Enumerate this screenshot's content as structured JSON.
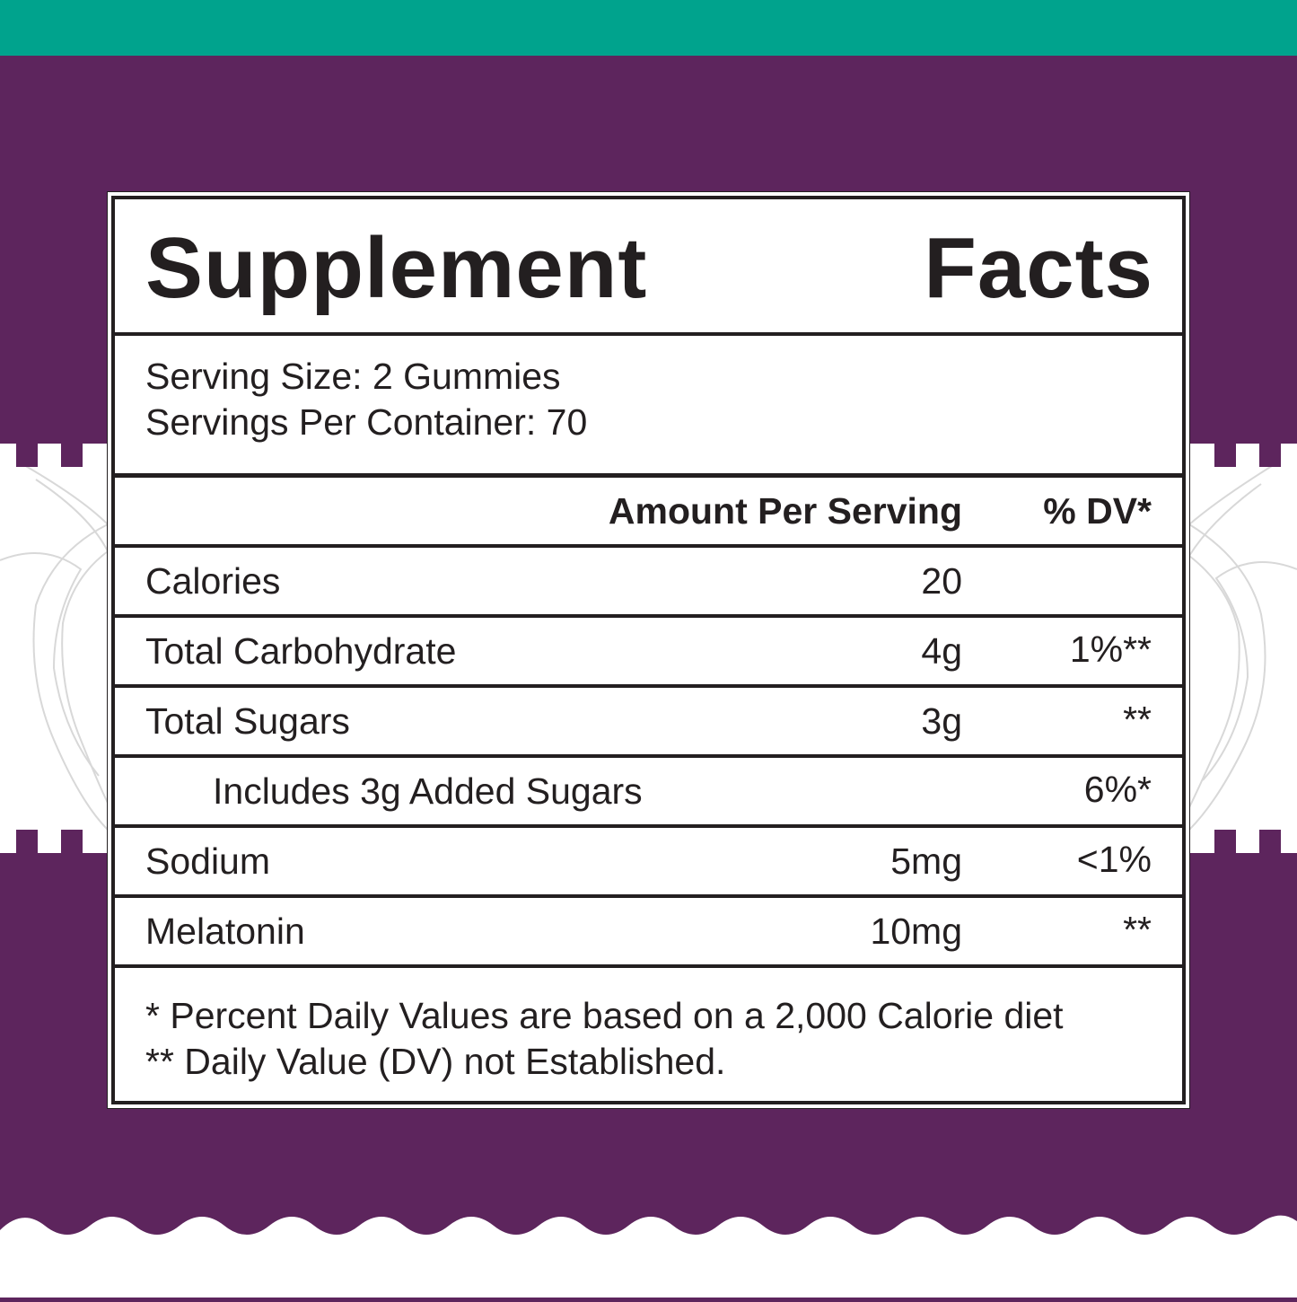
{
  "colors": {
    "teal": "#00a38d",
    "purple": "#5d255d",
    "ink": "#231f20"
  },
  "label": {
    "title_word_1": "Supplement",
    "title_word_2": "Facts",
    "serving_size": "Serving Size: 2 Gummies",
    "servings_per_container": "Servings Per Container: 70",
    "header_amount": "Amount Per Serving",
    "header_dv": "% DV*",
    "rows": [
      {
        "name": "Calories",
        "amount": "20",
        "dv": ""
      },
      {
        "name": "Total Carbohydrate",
        "amount": "4g",
        "dv": "1%**"
      },
      {
        "name": "Total Sugars",
        "amount": "3g",
        "dv": "**"
      },
      {
        "name": "Includes 3g Added Sugars",
        "amount": "",
        "dv": "6%*"
      },
      {
        "name": "Sodium",
        "amount": "5mg",
        "dv": "<1%"
      },
      {
        "name": "Melatonin",
        "amount": "10mg",
        "dv": "**"
      }
    ],
    "footnote_1": "* Percent Daily Values are based on a 2,000 Calorie diet",
    "footnote_2": "** Daily Value (DV) not Established."
  }
}
